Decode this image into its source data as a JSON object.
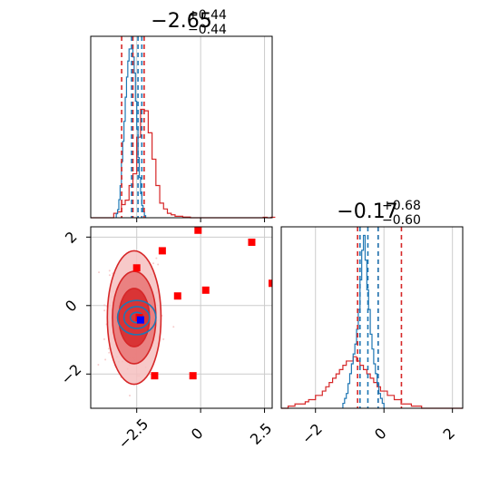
{
  "figure": {
    "colors": {
      "series_a": "#d62728",
      "series_b": "#1f77b4",
      "marker": "#ff0000",
      "truth": "#0000ff",
      "grid": "#cccccc"
    }
  },
  "chart_data": [
    {
      "type": "histogram",
      "param_index": 0,
      "title": {
        "main": "−2.65",
        "sup": "+0.44",
        "sub": "−0.44"
      },
      "xlim": [
        -4.3,
        2.8
      ],
      "x_ticks": [
        -2.5,
        0.0,
        2.5
      ],
      "grid": true,
      "series": [
        {
          "color": "#d62728",
          "bins_start": -4.3,
          "bin_width": 0.15,
          "counts": [
            0,
            0,
            0,
            0,
            0,
            0,
            3,
            4,
            9,
            12,
            22,
            30,
            55,
            74,
            73,
            58,
            40,
            22,
            10,
            6,
            3,
            2,
            1,
            1,
            0.5,
            0.5,
            0,
            0,
            0,
            0,
            0,
            0,
            0,
            0,
            0,
            0,
            0,
            0,
            0,
            0,
            0,
            0,
            0,
            0,
            0,
            0.3,
            0,
            0.3
          ],
          "quantile_lines": [
            -3.09,
            -2.65,
            -2.21
          ]
        },
        {
          "color": "#1f77b4",
          "bins_start": -3.3,
          "bin_width": 0.05,
          "counts": [
            2,
            4,
            9,
            16,
            28,
            38,
            48,
            60,
            70,
            78,
            84,
            84,
            86,
            80,
            72,
            58,
            44,
            30,
            20,
            12,
            6,
            3,
            1
          ],
          "quantile_lines": [
            -2.7,
            -2.45,
            -2.3
          ]
        }
      ]
    },
    {
      "type": "histogram",
      "param_index": 1,
      "title": {
        "main": "−0.17",
        "sup": "+0.68",
        "sub": "−0.60"
      },
      "xlim": [
        -3.0,
        2.3
      ],
      "x_ticks": [
        -2,
        0,
        2
      ],
      "grid": true,
      "series": [
        {
          "color": "#d62728",
          "bins_start": -3.0,
          "bin_width": 0.1,
          "counts": [
            0,
            0,
            0.5,
            0.5,
            1,
            1,
            1,
            1.5,
            2,
            2,
            3,
            3,
            4,
            5,
            6,
            7,
            8,
            9,
            10,
            11,
            11,
            12,
            11,
            10,
            9,
            8,
            7,
            6,
            5,
            4,
            4,
            3,
            3,
            2,
            2,
            1,
            1,
            1,
            0.5,
            0.5,
            0.5,
            0,
            0,
            0,
            0,
            0,
            0,
            0,
            0,
            0,
            0,
            0,
            0
          ],
          "quantile_lines": [
            -0.77,
            -0.17,
            0.51
          ]
        },
        {
          "color": "#1f77b4",
          "bins_start": -1.2,
          "bin_width": 0.05,
          "counts": [
            1,
            2,
            3,
            5,
            7,
            9,
            11,
            13,
            16,
            20,
            26,
            32,
            35,
            30,
            24,
            20,
            15,
            12,
            9,
            7,
            5,
            3,
            2,
            1
          ],
          "quantile_lines": [
            -0.7,
            -0.47,
            -0.17
          ]
        }
      ]
    },
    {
      "type": "scatter-contour",
      "xlim": [
        -4.3,
        2.8
      ],
      "ylim": [
        -3.0,
        2.3
      ],
      "x_ticks": [
        -2.5,
        0.0,
        2.5
      ],
      "y_ticks": [
        -2,
        0,
        2
      ],
      "grid": true,
      "contours": [
        {
          "color": "#d62728",
          "center": [
            -2.6,
            -0.35
          ],
          "levels": [
            {
              "rx": 1.05,
              "ry": 1.95
            },
            {
              "rx": 0.85,
              "ry": 1.35
            },
            {
              "rx": 0.6,
              "ry": 0.85
            }
          ]
        },
        {
          "color": "#1f77b4",
          "center": [
            -2.5,
            -0.35
          ],
          "levels": [
            {
              "rx": 0.75,
              "ry": 0.5
            },
            {
              "rx": 0.5,
              "ry": 0.32
            },
            {
              "rx": 0.25,
              "ry": 0.15
            }
          ]
        }
      ],
      "markers": {
        "color": "#ff0000",
        "points": [
          [
            -0.1,
            2.2
          ],
          [
            2.0,
            1.85
          ],
          [
            -1.5,
            1.6
          ],
          [
            -2.5,
            1.1
          ],
          [
            2.8,
            0.65
          ],
          [
            0.2,
            0.45
          ],
          [
            -0.9,
            0.28
          ],
          [
            -2.4,
            -0.35
          ],
          [
            -1.8,
            -2.05
          ],
          [
            -0.3,
            -2.05
          ]
        ]
      },
      "truth": {
        "color": "#0000ff",
        "point": [
          -2.35,
          -0.42
        ]
      }
    }
  ]
}
